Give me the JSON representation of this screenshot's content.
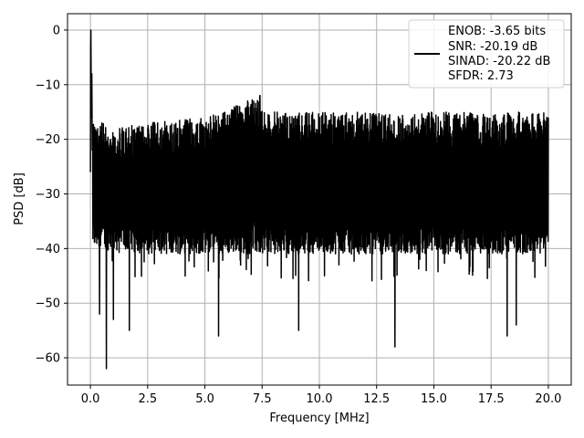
{
  "chart_data": {
    "type": "line",
    "title": "",
    "xlabel": "Frequency [MHz]",
    "ylabel": "PSD [dB]",
    "xlim": [
      -1.0,
      21.0
    ],
    "ylim": [
      -65,
      3
    ],
    "x_ticks": [
      0.0,
      2.5,
      5.0,
      7.5,
      10.0,
      12.5,
      15.0,
      17.5,
      20.0
    ],
    "x_tick_labels": [
      "0.0",
      "2.5",
      "5.0",
      "7.5",
      "10.0",
      "12.5",
      "15.0",
      "17.5",
      "20.0"
    ],
    "y_ticks": [
      0,
      -10,
      -20,
      -30,
      -40,
      -50,
      -60
    ],
    "y_tick_labels": [
      "0",
      "−10",
      "−20",
      "−30",
      "−40",
      "−50",
      "−60"
    ],
    "grid": true,
    "legend": {
      "placement": "top-right",
      "entries": [
        "ENOB: -3.65 bits",
        "SNR: -20.19 dB",
        "SINAD: -20.22 dB",
        "SFDR: 2.73"
      ]
    },
    "series": [
      {
        "color": "#000000",
        "x_range": [
          0.0,
          20.0
        ],
        "peak": {
          "x": 0.02,
          "y": 0
        },
        "envelope_upper": [
          [
            0.1,
            -16
          ],
          [
            1.0,
            -18
          ],
          [
            2.5,
            -17
          ],
          [
            5.0,
            -16
          ],
          [
            7.4,
            -12
          ],
          [
            7.5,
            -15
          ],
          [
            10.0,
            -15
          ],
          [
            12.5,
            -15
          ],
          [
            15.0,
            -15
          ],
          [
            17.5,
            -15
          ],
          [
            20.0,
            -15
          ]
        ],
        "envelope_typical_low": [
          [
            0.1,
            -37
          ],
          [
            2.5,
            -38
          ],
          [
            5.0,
            -38
          ],
          [
            10.0,
            -38
          ],
          [
            15.0,
            -38
          ],
          [
            20.0,
            -38
          ]
        ],
        "notable_minima": [
          {
            "x": 0.4,
            "y": -52
          },
          {
            "x": 0.7,
            "y": -62
          },
          {
            "x": 1.0,
            "y": -53
          },
          {
            "x": 1.7,
            "y": -55
          },
          {
            "x": 5.6,
            "y": -56
          },
          {
            "x": 9.1,
            "y": -55
          },
          {
            "x": 13.3,
            "y": -58
          },
          {
            "x": 18.2,
            "y": -56
          },
          {
            "x": 18.6,
            "y": -54
          }
        ],
        "end_value": -16
      }
    ]
  }
}
